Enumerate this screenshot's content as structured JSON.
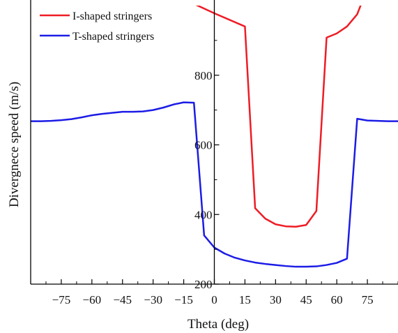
{
  "chart_data": {
    "type": "line",
    "xlabel": "Theta (deg)",
    "ylabel": "Divergnece speed (m/s)",
    "xlim": [
      -90,
      90
    ],
    "ylim": [
      200,
      1000
    ],
    "xticks": [
      -75,
      -60,
      -45,
      -30,
      -15,
      0,
      15,
      30,
      45,
      60,
      75
    ],
    "xtick_labels": [
      "−75",
      "−60",
      "−45",
      "−30",
      "−15",
      "0",
      "15",
      "30",
      "45",
      "60",
      "75"
    ],
    "yticks": [
      200,
      400,
      600,
      800
    ],
    "ytick_labels": [
      "200",
      "400",
      "600",
      "800"
    ],
    "y_axis_position_x": 0,
    "grid": false,
    "legend_position": "top-left",
    "series": [
      {
        "name": "I-shaped stringers",
        "color": "#ee1c25",
        "x": [
          -10,
          0,
          15,
          20,
          25,
          30,
          35,
          40,
          45,
          50,
          55,
          60,
          65,
          70,
          72
        ],
        "y": [
          1005,
          978,
          940,
          418,
          388,
          372,
          366,
          365,
          370,
          410,
          908,
          920,
          940,
          975,
          1005
        ]
      },
      {
        "name": "T-shaped stringers",
        "color": "#1c1ce6",
        "x": [
          -90,
          -85,
          -80,
          -75,
          -70,
          -65,
          -60,
          -55,
          -50,
          -45,
          -40,
          -35,
          -30,
          -25,
          -20,
          -15,
          -10,
          -5,
          0,
          5,
          10,
          15,
          20,
          25,
          30,
          35,
          40,
          45,
          50,
          55,
          60,
          65,
          70,
          75,
          80,
          85,
          90
        ],
        "y": [
          668,
          668,
          669,
          671,
          674,
          679,
          685,
          689,
          692,
          695,
          695,
          696,
          700,
          707,
          716,
          722,
          721,
          340,
          305,
          288,
          276,
          268,
          262,
          258,
          255,
          252,
          250,
          250,
          251,
          255,
          261,
          273,
          675,
          670,
          669,
          668,
          668
        ]
      }
    ]
  }
}
